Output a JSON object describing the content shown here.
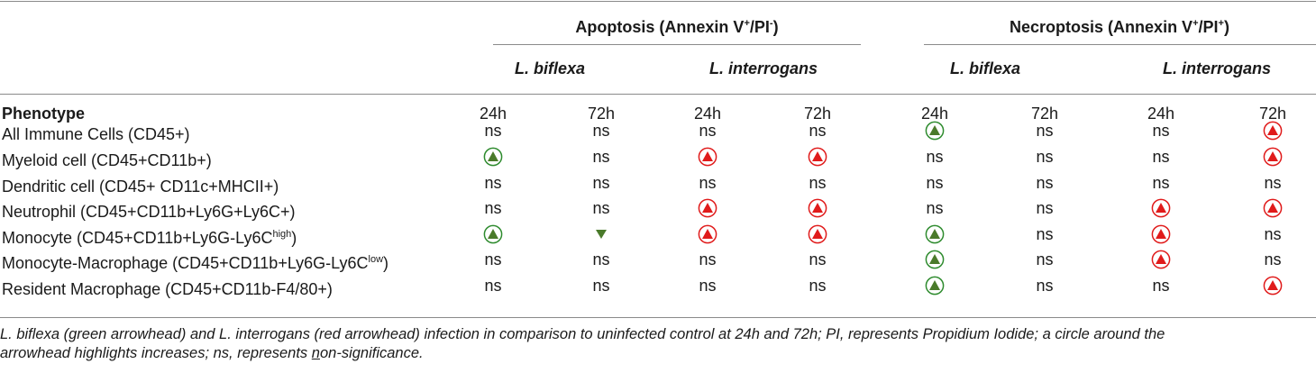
{
  "groups": [
    {
      "label_pre": "Apoptosis (Annexin V",
      "sup1": "+",
      "label_mid": "/PI",
      "sup2": "-",
      "label_post": ")"
    },
    {
      "label_pre": "Necroptosis (Annexin V",
      "sup1": "+",
      "label_mid": "/PI",
      "sup2": "+",
      "label_post": ")"
    }
  ],
  "species": [
    "L. biflexa",
    "L. interrogans",
    "L. biflexa",
    "L. interrogans"
  ],
  "phenotype_header": "Phenotype",
  "timepoints": [
    "24h",
    "72h",
    "24h",
    "72h",
    "24h",
    "72h",
    "24h",
    "72h"
  ],
  "rows": [
    {
      "label_pre": "All Immune Cells (CD45+)",
      "label_sup": "",
      "label_post": "",
      "cells": [
        "ns",
        "ns",
        "ns",
        "ns",
        "green-up-circled",
        "ns",
        "ns",
        "red-up-circled"
      ]
    },
    {
      "label_pre": "Myeloid cell (CD45+CD11b+)",
      "label_sup": "",
      "label_post": "",
      "cells": [
        "green-up-circled",
        "ns",
        "red-up-circled",
        "red-up-circled",
        "ns",
        "ns",
        "ns",
        "red-up-circled"
      ]
    },
    {
      "label_pre": "Dendritic cell (CD45+ CD11c+MHCII+)",
      "label_sup": "",
      "label_post": "",
      "cells": [
        "ns",
        "ns",
        "ns",
        "ns",
        "ns",
        "ns",
        "ns",
        "ns"
      ]
    },
    {
      "label_pre": "Neutrophil (CD45+CD11b+Ly6G+Ly6C+)",
      "label_sup": "",
      "label_post": "",
      "cells": [
        "ns",
        "ns",
        "red-up-circled",
        "red-up-circled",
        "ns",
        "ns",
        "red-up-circled",
        "red-up-circled"
      ]
    },
    {
      "label_pre": "Monocyte (CD45+CD11b+Ly6G-Ly6C",
      "label_sup": "high",
      "label_post": ")",
      "cells": [
        "green-up-circled",
        "green-down",
        "red-up-circled",
        "red-up-circled",
        "green-up-circled",
        "ns",
        "red-up-circled",
        "ns"
      ]
    },
    {
      "label_pre": "Monocyte-Macrophage (CD45+CD11b+Ly6G-Ly6C",
      "label_sup": "low",
      "label_post": ")",
      "cells": [
        "ns",
        "ns",
        "ns",
        "ns",
        "green-up-circled",
        "ns",
        "red-up-circled",
        "ns"
      ]
    },
    {
      "label_pre": "Resident Macrophage (CD45+CD11b-F4/80+)",
      "label_sup": "",
      "label_post": "",
      "cells": [
        "ns",
        "ns",
        "ns",
        "ns",
        "green-up-circled",
        "ns",
        "ns",
        "red-up-circled"
      ]
    }
  ],
  "colors": {
    "green": "#2e8b2e",
    "green_fill": "#4a7a2a",
    "red": "#e01b1b",
    "rule": "#8a8a8a"
  },
  "footnote": {
    "line1": "L. biflexa (green arrowhead) and L. interrogans (red arrowhead) infection in comparison to uninfected control at 24h and 72h; PI, represents Propidium Iodide; a circle around the",
    "line2_pre": "arrowhead highlights increases; ns, represents ",
    "line2_u": "n",
    "line2_post": "on-significance."
  }
}
